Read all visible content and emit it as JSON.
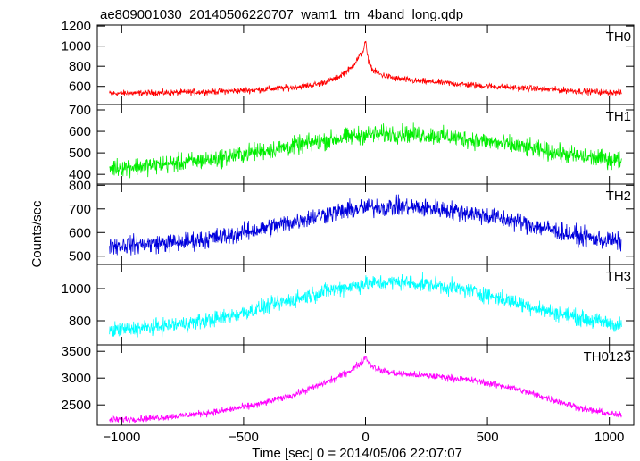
{
  "title": "ae809001030_20140506220707_wam1_trn_4band_long.qdp",
  "ylabel": "Counts/sec",
  "xlabel": "Time [sec] 0 = 2014/05/06 22:07:07",
  "chart_data": {
    "type": "line",
    "title": "ae809001030_20140506220707_wam1_trn_4band_long.qdp",
    "xlabel": "Time [sec] 0 = 2014/05/06 22:07:07",
    "ylabel": "Counts/sec",
    "xlim": [
      -1100,
      1100
    ],
    "xticks": [
      -1000,
      -500,
      0,
      500,
      1000
    ],
    "xtick_labels": [
      "−1000",
      "−500",
      "0",
      "500",
      "1000"
    ],
    "grid": false,
    "panels": [
      {
        "name": "TH0",
        "color": "#ff0000",
        "ylim": [
          420,
          1210
        ],
        "yticks": [
          600,
          800,
          1000,
          1200
        ],
        "ytick_labels": [
          "600",
          "800",
          "1000",
          "1200"
        ],
        "x": [
          -1050,
          -900,
          -750,
          -600,
          -450,
          -300,
          -200,
          -120,
          -60,
          -30,
          -10,
          0,
          10,
          30,
          60,
          120,
          200,
          300,
          450,
          600,
          750,
          900,
          1050
        ],
        "y": [
          530,
          535,
          540,
          550,
          565,
          590,
          620,
          680,
          780,
          880,
          950,
          1050,
          870,
          760,
          720,
          680,
          655,
          640,
          610,
          590,
          570,
          550,
          535
        ],
        "noise": 22
      },
      {
        "name": "TH1",
        "color": "#00ee00",
        "ylim": [
          355,
          725
        ],
        "yticks": [
          400,
          500,
          600,
          700
        ],
        "ytick_labels": [
          "400",
          "500",
          "600",
          "700"
        ],
        "x": [
          -1050,
          -900,
          -750,
          -600,
          -450,
          -300,
          -150,
          0,
          150,
          300,
          450,
          600,
          750,
          900,
          1050
        ],
        "y": [
          430,
          440,
          455,
          475,
          505,
          530,
          560,
          585,
          590,
          580,
          560,
          535,
          505,
          480,
          465
        ],
        "noise": 30
      },
      {
        "name": "TH2",
        "color": "#0000dd",
        "ylim": [
          465,
          805
        ],
        "yticks": [
          500,
          600,
          700,
          800
        ],
        "ytick_labels": [
          "500",
          "600",
          "700",
          "800"
        ],
        "x": [
          -1050,
          -900,
          -750,
          -600,
          -450,
          -300,
          -150,
          0,
          150,
          300,
          450,
          600,
          750,
          900,
          1050
        ],
        "y": [
          545,
          550,
          560,
          580,
          610,
          645,
          680,
          705,
          710,
          700,
          680,
          650,
          615,
          580,
          560
        ],
        "noise": 28
      },
      {
        "name": "TH3",
        "color": "#00ffff",
        "ylim": [
          650,
          1150
        ],
        "yticks": [
          800,
          1000
        ],
        "ytick_labels": [
          "800",
          "1000"
        ],
        "x": [
          -1050,
          -900,
          -750,
          -600,
          -450,
          -300,
          -150,
          0,
          150,
          300,
          450,
          600,
          750,
          900,
          1050
        ],
        "y": [
          740,
          755,
          780,
          815,
          870,
          930,
          990,
          1030,
          1040,
          1020,
          980,
          920,
          860,
          810,
          770
        ],
        "noise": 35
      },
      {
        "name": "TH0123",
        "color": "#ff00ff",
        "ylim": [
          2120,
          3620
        ],
        "yticks": [
          2500,
          3000,
          3500
        ],
        "ytick_labels": [
          "2500",
          "3000",
          "3500"
        ],
        "x": [
          -1050,
          -900,
          -750,
          -600,
          -450,
          -300,
          -200,
          -120,
          -60,
          -20,
          0,
          20,
          60,
          120,
          200,
          300,
          450,
          600,
          750,
          900,
          1050
        ],
        "y": [
          2220,
          2250,
          2300,
          2380,
          2500,
          2680,
          2850,
          3000,
          3150,
          3280,
          3400,
          3250,
          3140,
          3090,
          3060,
          3030,
          2950,
          2820,
          2620,
          2420,
          2300
        ],
        "noise": 45
      }
    ]
  }
}
